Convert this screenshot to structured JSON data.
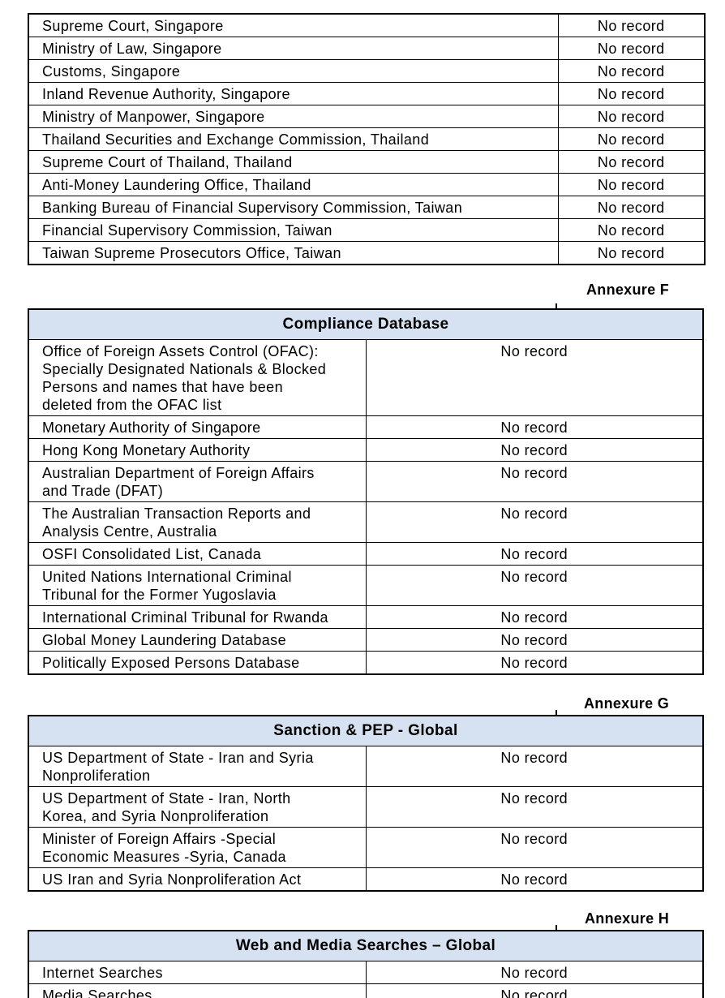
{
  "colors": {
    "header_background": "#d6e1f2",
    "border": "#000000",
    "text": "#000000",
    "page_background": "#ffffff"
  },
  "tables": {
    "continued": {
      "rows": [
        {
          "source": "Supreme Court, Singapore",
          "result": "No record"
        },
        {
          "source": "Ministry of Law, Singapore",
          "result": "No record"
        },
        {
          "source": "Customs, Singapore",
          "result": "No record"
        },
        {
          "source": "Inland Revenue Authority, Singapore",
          "result": "No record"
        },
        {
          "source": "Ministry of Manpower, Singapore",
          "result": "No record"
        },
        {
          "source": "Thailand Securities and Exchange Commission, Thailand",
          "result": "No record"
        },
        {
          "source": "Supreme Court of Thailand, Thailand",
          "result": "No record"
        },
        {
          "source": "Anti-Money Laundering Office, Thailand",
          "result": "No record"
        },
        {
          "source": "Banking Bureau of Financial Supervisory Commission, Taiwan",
          "result": "No record"
        },
        {
          "source": "Financial Supervisory Commission, Taiwan",
          "result": "No record"
        },
        {
          "source": "Taiwan Supreme Prosecutors Office, Taiwan",
          "result": "No record"
        }
      ]
    },
    "f": {
      "annexure_label": "Annexure F",
      "title": "Compliance Database",
      "rows": [
        {
          "source": "Office of Foreign Assets Control (OFAC): Specially Designated Nationals & Blocked Persons and names that have been deleted from the OFAC list",
          "result": "No record"
        },
        {
          "source": "Monetary Authority of Singapore",
          "result": "No record"
        },
        {
          "source": "Hong Kong Monetary Authority",
          "result": "No record"
        },
        {
          "source": "Australian Department of Foreign Affairs and Trade (DFAT)",
          "result": "No record"
        },
        {
          "source": "The Australian Transaction Reports and Analysis Centre, Australia",
          "result": "No record"
        },
        {
          "source": "OSFI Consolidated List, Canada",
          "result": "No record"
        },
        {
          "source": "United Nations International Criminal Tribunal for the Former Yugoslavia",
          "result": "No record"
        },
        {
          "source": "International Criminal Tribunal for Rwanda",
          "result": "No record"
        },
        {
          "source": "Global Money Laundering Database",
          "result": "No record"
        },
        {
          "source": "Politically Exposed Persons Database",
          "result": "No record"
        }
      ]
    },
    "g": {
      "annexure_label": "Annexure G",
      "title": "Sanction & PEP - Global",
      "rows": [
        {
          "source": "US Department of State - Iran and Syria Nonproliferation",
          "result": "No record"
        },
        {
          "source": "US Department of State - Iran, North Korea, and Syria Nonproliferation",
          "result": "No record"
        },
        {
          "source": "Minister of Foreign Affairs -Special Economic Measures -Syria, Canada",
          "result": "No record"
        },
        {
          "source": "US Iran and Syria Nonproliferation Act",
          "result": "No record"
        }
      ]
    },
    "h": {
      "annexure_label": "Annexure H",
      "title": "Web and Media Searches – Global",
      "rows": [
        {
          "source": "Internet Searches",
          "result": "No record"
        },
        {
          "source": "Media Searches",
          "result": "No record"
        }
      ]
    }
  }
}
